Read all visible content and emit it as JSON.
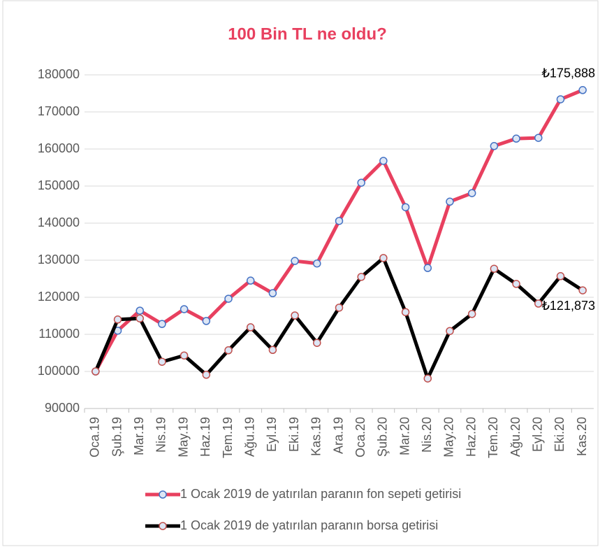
{
  "chart_data": {
    "type": "line",
    "title": "100 Bin TL ne oldu?",
    "categories": [
      "Oca.19",
      "Şub.19",
      "Mar.19",
      "Nis.19",
      "May.19",
      "Haz.19",
      "Tem.19",
      "Ağu.19",
      "Eyl.19",
      "Eki.19",
      "Kas.19",
      "Ara.19",
      "Oca.20",
      "Şub.20",
      "Mar.20",
      "Nis.20",
      "May.20",
      "Haz.20",
      "Tem.20",
      "Ağu.20",
      "Eyl.20",
      "Eki.20",
      "Kas.20"
    ],
    "series": [
      {
        "name": "1 Ocak 2019 de yatırılan paranın fon sepeti getirisi",
        "color": "#e8405f",
        "marker_color": "#4472c4",
        "values": [
          100000,
          111000,
          116400,
          112800,
          116800,
          113600,
          119600,
          124500,
          121100,
          129800,
          129100,
          140600,
          150900,
          156800,
          144300,
          127900,
          145800,
          148100,
          160800,
          162800,
          163000,
          173400,
          175888
        ],
        "value_labels": [
          null,
          null,
          null,
          null,
          null,
          null,
          null,
          null,
          null,
          null,
          null,
          null,
          null,
          null,
          null,
          null,
          null,
          null,
          null,
          null,
          null,
          null,
          "₺175,888"
        ]
      },
      {
        "name": "1 Ocak 2019 de yatırılan paranın borsa getirisi",
        "color": "#000000",
        "marker_color": "#c0504d",
        "values": [
          100000,
          114000,
          114300,
          102600,
          104300,
          99100,
          105700,
          111900,
          105800,
          115100,
          107700,
          117200,
          125500,
          130600,
          116000,
          98100,
          110900,
          115500,
          127700,
          123600,
          118300,
          125700,
          121873
        ],
        "value_labels": [
          null,
          null,
          null,
          null,
          null,
          null,
          null,
          null,
          null,
          null,
          null,
          null,
          null,
          null,
          null,
          null,
          null,
          null,
          null,
          null,
          null,
          null,
          "₺121,873"
        ]
      }
    ],
    "ylim": [
      90000,
      180000
    ],
    "yticks": [
      90000,
      100000,
      110000,
      120000,
      130000,
      140000,
      150000,
      160000,
      170000,
      180000
    ],
    "grid": true,
    "legend": "bottom"
  }
}
